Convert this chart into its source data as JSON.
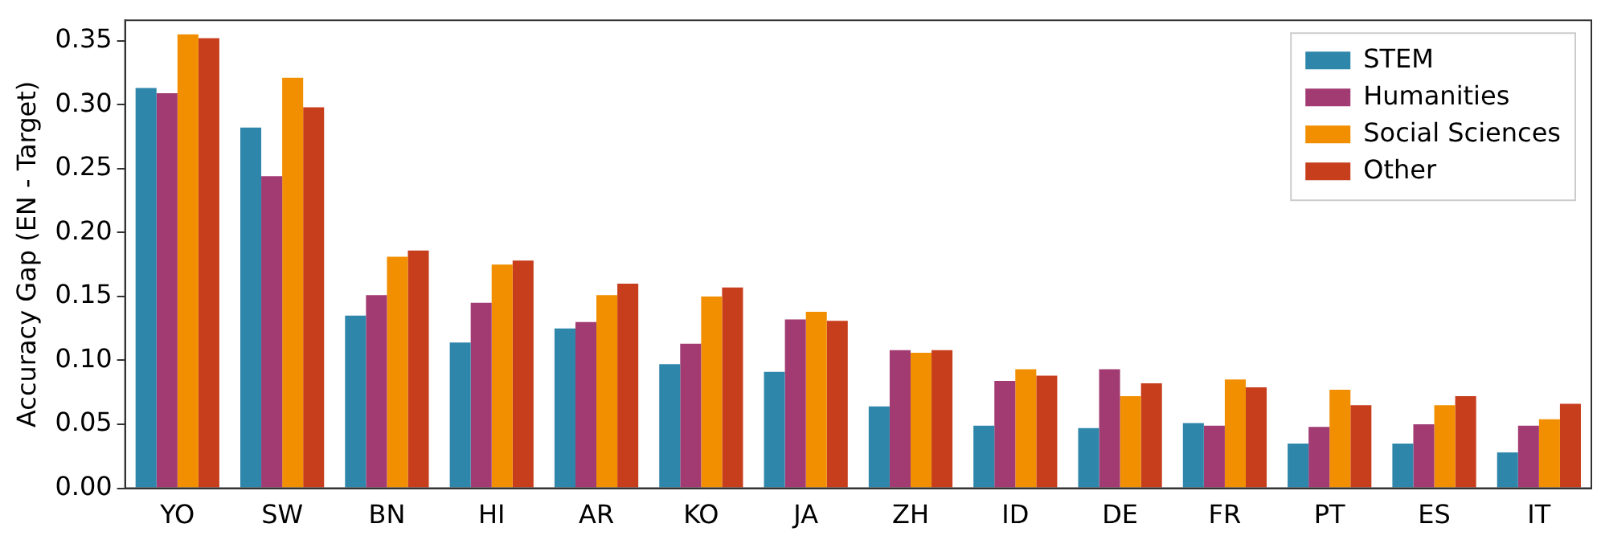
{
  "chart_data": {
    "type": "bar",
    "ylabel": "Accuracy Gap (EN - Target)",
    "categories": [
      "YO",
      "SW",
      "BN",
      "HI",
      "AR",
      "KO",
      "JA",
      "ZH",
      "ID",
      "DE",
      "FR",
      "PT",
      "ES",
      "IT"
    ],
    "series": [
      {
        "name": "STEM",
        "color": "#2e86ab",
        "values": [
          0.313,
          0.282,
          0.135,
          0.114,
          0.125,
          0.097,
          0.091,
          0.064,
          0.049,
          0.047,
          0.051,
          0.035,
          0.035,
          0.028
        ]
      },
      {
        "name": "Humanities",
        "color": "#a23b72",
        "values": [
          0.309,
          0.244,
          0.151,
          0.145,
          0.13,
          0.113,
          0.132,
          0.108,
          0.084,
          0.093,
          0.049,
          0.048,
          0.05,
          0.049
        ]
      },
      {
        "name": "Social Sciences",
        "color": "#f18f01",
        "values": [
          0.355,
          0.321,
          0.181,
          0.175,
          0.151,
          0.15,
          0.138,
          0.106,
          0.093,
          0.072,
          0.085,
          0.077,
          0.065,
          0.054
        ]
      },
      {
        "name": "Other",
        "color": "#c73e1d",
        "values": [
          0.352,
          0.298,
          0.186,
          0.178,
          0.16,
          0.157,
          0.131,
          0.108,
          0.088,
          0.082,
          0.079,
          0.065,
          0.072,
          0.066
        ]
      }
    ],
    "ylim": [
      0,
      0.366
    ],
    "yticks": [
      {
        "value": 0,
        "label": "0.00"
      },
      {
        "value": 0.05,
        "label": "0.05"
      },
      {
        "value": 0.1,
        "label": "0.10"
      },
      {
        "value": 0.15,
        "label": "0.15"
      },
      {
        "value": 0.2,
        "label": "0.20"
      },
      {
        "value": 0.25,
        "label": "0.25"
      },
      {
        "value": 0.3,
        "label": "0.30"
      },
      {
        "value": 0.35,
        "label": "0.35"
      }
    ],
    "grid": false,
    "legend": "top right"
  }
}
